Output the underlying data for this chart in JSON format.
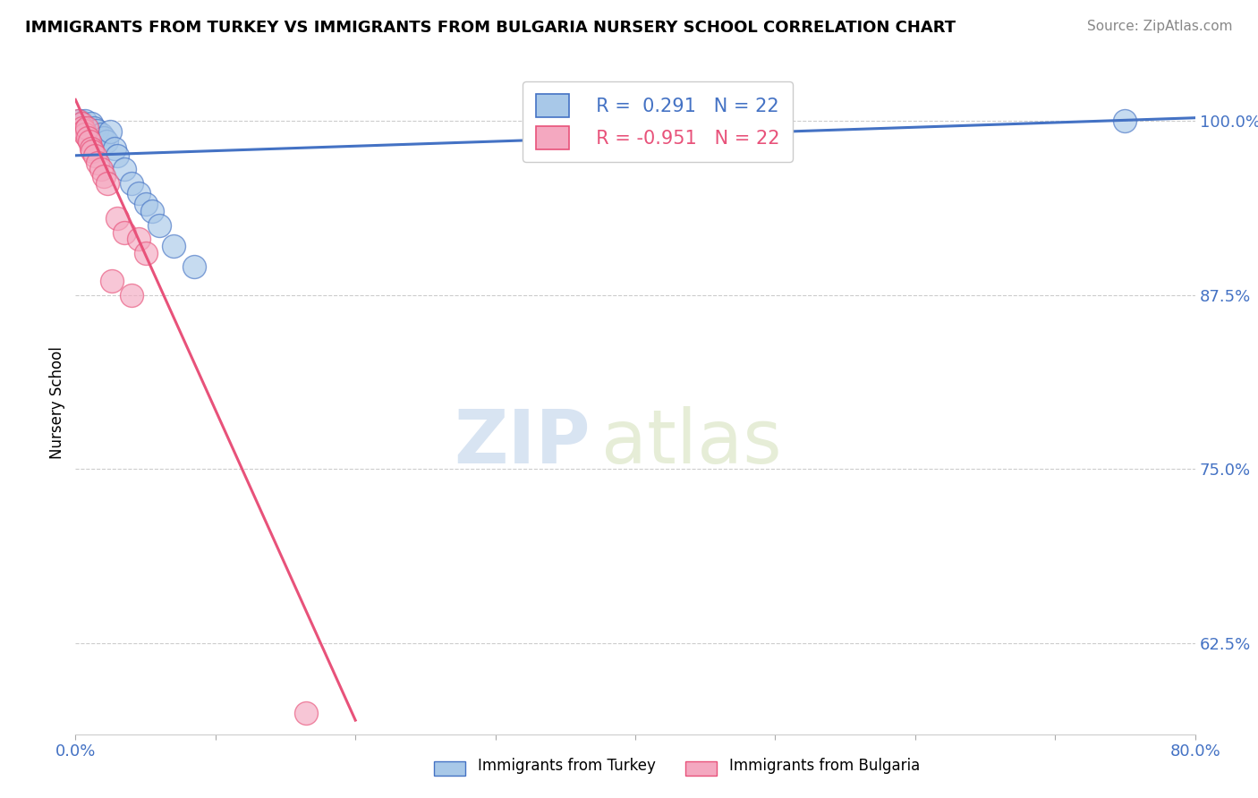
{
  "title": "IMMIGRANTS FROM TURKEY VS IMMIGRANTS FROM BULGARIA NURSERY SCHOOL CORRELATION CHART",
  "source": "Source: ZipAtlas.com",
  "ylabel": "Nursery School",
  "xlim": [
    0.0,
    80.0
  ],
  "ylim": [
    56.0,
    103.5
  ],
  "yticks": [
    62.5,
    75.0,
    87.5,
    100.0
  ],
  "ytick_labels": [
    "62.5%",
    "75.0%",
    "87.5%",
    "100.0%"
  ],
  "turkey_color": "#A8C8E8",
  "bulgaria_color": "#F4A8C0",
  "turkey_line_color": "#4472C4",
  "bulgaria_line_color": "#E8527A",
  "turkey_R": 0.291,
  "turkey_N": 22,
  "bulgaria_R": -0.951,
  "bulgaria_N": 22,
  "legend_label_turkey": "Immigrants from Turkey",
  "legend_label_bulgaria": "Immigrants from Bulgaria",
  "watermark_zip": "ZIP",
  "watermark_atlas": "atlas",
  "background_color": "#FFFFFF",
  "turkey_x": [
    0.3,
    0.5,
    0.7,
    0.9,
    1.1,
    1.3,
    1.5,
    1.8,
    2.0,
    2.2,
    2.5,
    2.8,
    3.0,
    3.5,
    4.0,
    4.5,
    5.0,
    5.5,
    6.0,
    7.0,
    8.5,
    75.0
  ],
  "turkey_y": [
    100.0,
    99.8,
    100.0,
    99.5,
    99.8,
    99.5,
    99.3,
    99.0,
    98.8,
    98.5,
    99.2,
    98.0,
    97.5,
    96.5,
    95.5,
    94.8,
    94.0,
    93.5,
    92.5,
    91.0,
    89.5,
    100.0
  ],
  "bulgaria_x": [
    0.2,
    0.4,
    0.5,
    0.6,
    0.7,
    0.8,
    0.9,
    1.0,
    1.1,
    1.2,
    1.4,
    1.6,
    1.8,
    2.0,
    2.3,
    2.6,
    3.0,
    3.5,
    4.0,
    4.5,
    5.0,
    16.5
  ],
  "bulgaria_y": [
    100.0,
    99.8,
    99.5,
    99.3,
    99.0,
    99.5,
    98.8,
    98.5,
    98.0,
    97.8,
    97.5,
    97.0,
    96.5,
    96.0,
    95.5,
    88.5,
    93.0,
    92.0,
    87.5,
    91.5,
    90.5,
    57.5
  ],
  "turkey_line_x": [
    0.0,
    80.0
  ],
  "turkey_line_y": [
    97.5,
    100.2
  ],
  "bulgaria_line_x": [
    0.0,
    20.0
  ],
  "bulgaria_line_y": [
    101.5,
    57.0
  ]
}
